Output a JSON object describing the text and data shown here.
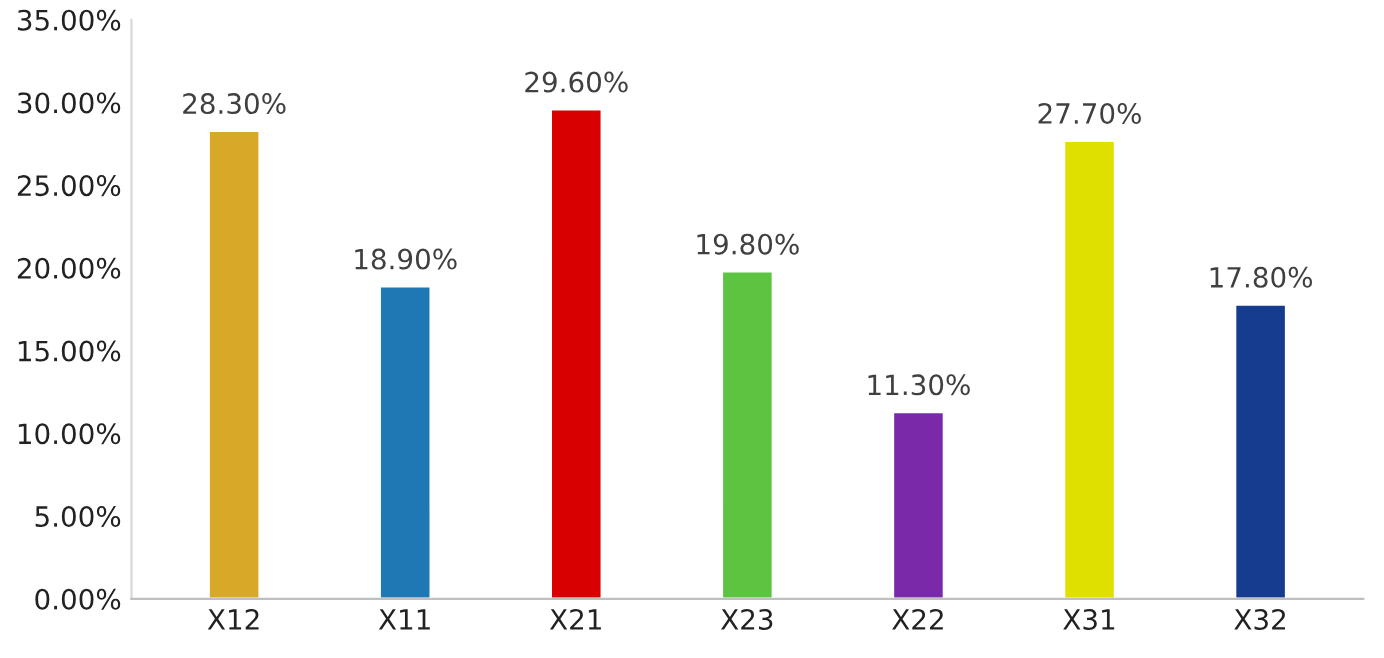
{
  "chart_data": {
    "type": "bar",
    "categories": [
      "X12",
      "X11",
      "X21",
      "X23",
      "X22",
      "X31",
      "X32"
    ],
    "values": [
      28.3,
      18.9,
      29.6,
      19.8,
      11.3,
      27.7,
      17.8
    ],
    "value_labels": [
      "28.30%",
      "18.90%",
      "29.60%",
      "19.80%",
      "11.30%",
      "27.70%",
      "17.80%"
    ],
    "colors": [
      "#d8a828",
      "#1f78b4",
      "#d80000",
      "#5cc440",
      "#7a2aa8",
      "#e0e000",
      "#163c90"
    ],
    "ylim": [
      0,
      35
    ],
    "yticks": [
      {
        "value": 0,
        "label": "0.00%"
      },
      {
        "value": 5,
        "label": "5.00%"
      },
      {
        "value": 10,
        "label": "10.00%"
      },
      {
        "value": 15,
        "label": "15.00%"
      },
      {
        "value": 20,
        "label": "20.00%"
      },
      {
        "value": 25,
        "label": "25.00%"
      },
      {
        "value": 30,
        "label": "30.00%"
      },
      {
        "value": 35,
        "label": "35.00%"
      }
    ],
    "grid": false,
    "legend": false
  }
}
